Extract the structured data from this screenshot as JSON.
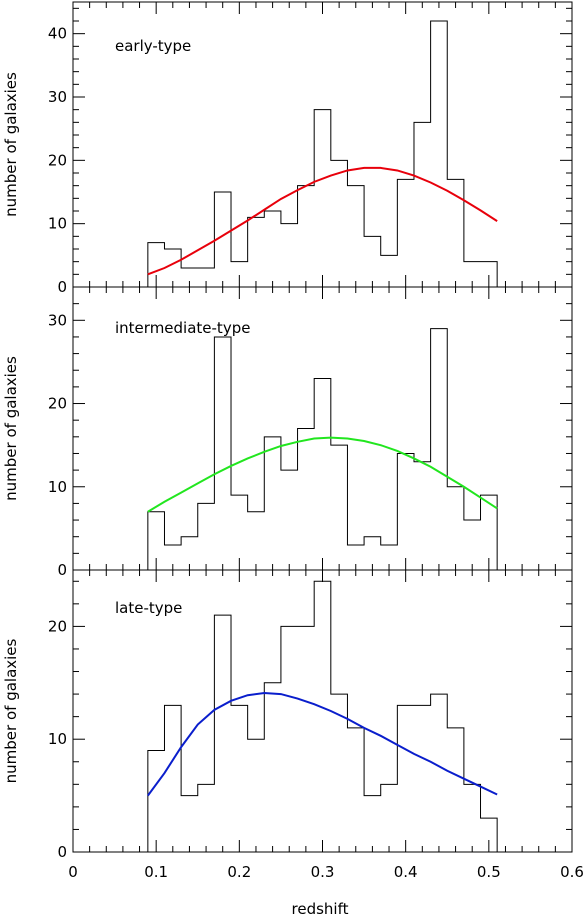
{
  "chart_data": [
    {
      "type": "histogram",
      "annotation": "early-type",
      "xlabel": "redshift",
      "ylabel": "number of galaxies",
      "xlim": [
        0,
        0.6
      ],
      "ylim": [
        0,
        45
      ],
      "y_ticks": [
        0,
        10,
        20,
        30,
        40
      ],
      "bin_edges": [
        0.09,
        0.11,
        0.13,
        0.17,
        0.19,
        0.21,
        0.23,
        0.25,
        0.27,
        0.29,
        0.31,
        0.33,
        0.35,
        0.37,
        0.39,
        0.41,
        0.43,
        0.45,
        0.47,
        0.51
      ],
      "counts": [
        7,
        6,
        3,
        15,
        4,
        11,
        12,
        10,
        16,
        28,
        20,
        16,
        8,
        5,
        17,
        26,
        42,
        17,
        4
      ],
      "fit": {
        "color": "#e8000b",
        "x": [
          0.09,
          0.11,
          0.13,
          0.15,
          0.17,
          0.19,
          0.21,
          0.23,
          0.25,
          0.27,
          0.29,
          0.31,
          0.33,
          0.35,
          0.37,
          0.39,
          0.41,
          0.43,
          0.45,
          0.47,
          0.49,
          0.51
        ],
        "y": [
          2,
          3,
          4.3,
          5.8,
          7.3,
          8.9,
          10.5,
          12.2,
          13.9,
          15.3,
          16.6,
          17.6,
          18.4,
          18.8,
          18.8,
          18.4,
          17.6,
          16.5,
          15.2,
          13.7,
          12.1,
          10.4
        ]
      }
    },
    {
      "type": "histogram",
      "annotation": "intermediate-type",
      "xlabel": "redshift",
      "ylabel": "number of galaxies",
      "xlim": [
        0,
        0.6
      ],
      "ylim": [
        0,
        34
      ],
      "y_ticks": [
        0,
        10,
        20,
        30
      ],
      "bin_edges": [
        0.09,
        0.11,
        0.13,
        0.15,
        0.17,
        0.19,
        0.21,
        0.23,
        0.25,
        0.27,
        0.29,
        0.31,
        0.33,
        0.35,
        0.37,
        0.39,
        0.41,
        0.43,
        0.45,
        0.47,
        0.49,
        0.51
      ],
      "counts": [
        7,
        3,
        4,
        8,
        28,
        9,
        7,
        16,
        12,
        17,
        23,
        15,
        3,
        4,
        3,
        14,
        13,
        29,
        10,
        6,
        9
      ],
      "fit": {
        "color": "#22e61f",
        "x": [
          0.09,
          0.11,
          0.13,
          0.15,
          0.17,
          0.19,
          0.21,
          0.23,
          0.25,
          0.27,
          0.29,
          0.31,
          0.33,
          0.35,
          0.37,
          0.39,
          0.41,
          0.43,
          0.45,
          0.47,
          0.49,
          0.51
        ],
        "y": [
          7,
          8.2,
          9.3,
          10.4,
          11.5,
          12.5,
          13.4,
          14.2,
          14.9,
          15.4,
          15.8,
          15.9,
          15.8,
          15.5,
          15,
          14.3,
          13.4,
          12.4,
          11.2,
          10,
          8.7,
          7.4
        ]
      }
    },
    {
      "type": "histogram",
      "annotation": "late-type",
      "xlabel": "redshift",
      "ylabel": "number of galaxies",
      "xlim": [
        0,
        0.6
      ],
      "ylim": [
        0,
        25
      ],
      "y_ticks": [
        0,
        10,
        20
      ],
      "bin_edges": [
        0.09,
        0.11,
        0.13,
        0.15,
        0.17,
        0.19,
        0.21,
        0.23,
        0.25,
        0.29,
        0.31,
        0.33,
        0.35,
        0.37,
        0.39,
        0.43,
        0.45,
        0.47,
        0.49,
        0.51
      ],
      "counts": [
        9,
        13,
        5,
        6,
        21,
        13,
        10,
        15,
        20,
        24,
        14,
        11,
        5,
        6,
        13,
        14,
        11,
        6,
        3
      ],
      "fit": {
        "color": "#0a1ecc",
        "x": [
          0.09,
          0.11,
          0.13,
          0.15,
          0.17,
          0.19,
          0.21,
          0.23,
          0.25,
          0.27,
          0.29,
          0.31,
          0.33,
          0.35,
          0.37,
          0.39,
          0.41,
          0.43,
          0.45,
          0.47,
          0.49,
          0.51
        ],
        "y": [
          5,
          7,
          9.3,
          11.3,
          12.6,
          13.4,
          13.9,
          14.1,
          14,
          13.6,
          13.1,
          12.5,
          11.8,
          11,
          10.3,
          9.5,
          8.7,
          8,
          7.2,
          6.5,
          5.8,
          5.1
        ]
      }
    }
  ],
  "x_ticks": [
    "0",
    "0.1",
    "0.2",
    "0.3",
    "0.4",
    "0.5",
    "0.6"
  ],
  "x_tick_values": [
    0,
    0.1,
    0.2,
    0.3,
    0.4,
    0.5,
    0.6
  ]
}
